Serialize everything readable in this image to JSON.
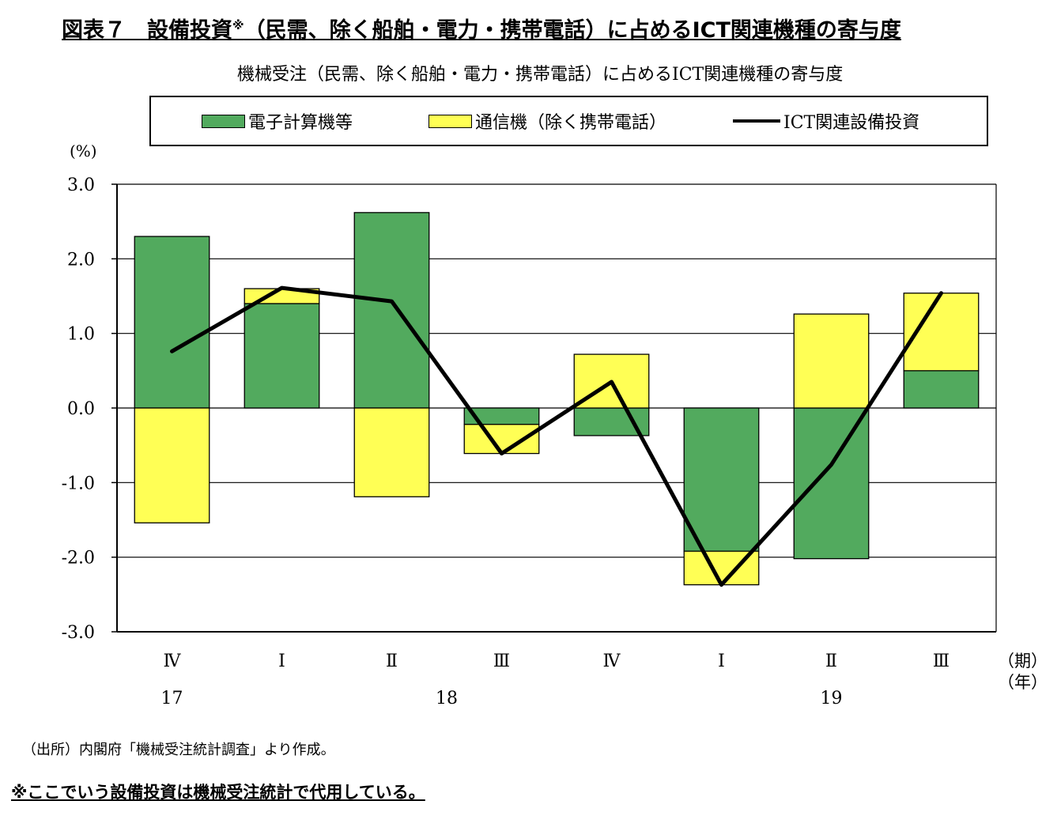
{
  "header": {
    "title": "図表７　設備投資",
    "title_mark": "※",
    "title_rest": "（民需、除く船舶・電力・携帯電話）に占めるICT関連機種の寄与度"
  },
  "unit_label": "(%)",
  "source": "（出所）内閣府「機械受注統計調査」より作成。",
  "footnote": "※ここでいう設備投資は機械受注統計で代用している。",
  "colors": {
    "computer": "#52aa5e",
    "telecom": "#ffff55",
    "line": "#000000",
    "grid": "#000000"
  },
  "chart_data": {
    "type": "bar",
    "stacked": true,
    "title": "機械受注（民需、除く船舶・電力・携帯電話）に占めるICT関連機種の寄与度",
    "ylim": [
      -3.0,
      3.0
    ],
    "yticks": [
      "3.0",
      "2.0",
      "1.0",
      "0.0",
      "-1.0",
      "-2.0",
      "-3.0"
    ],
    "ytick_values": [
      3,
      2,
      1,
      0,
      -1,
      -2,
      -3
    ],
    "grid": true,
    "legend_position": "top",
    "categories": [
      "Ⅳ",
      "Ⅰ",
      "Ⅱ",
      "Ⅲ",
      "Ⅳ",
      "Ⅰ",
      "Ⅱ",
      "Ⅲ"
    ],
    "years": [
      {
        "label": "17",
        "category_index": 0
      },
      {
        "label": "18",
        "category_index": 2.5
      },
      {
        "label": "19",
        "category_index": 6
      }
    ],
    "x_suffix_period": "（期）",
    "x_suffix_year": "（年）",
    "series": [
      {
        "name": "電子計算機等",
        "type": "bar",
        "values": [
          2.3,
          1.4,
          2.62,
          -0.22,
          -0.37,
          -1.92,
          -2.02,
          0.5
        ]
      },
      {
        "name": "通信機（除く携帯電話）",
        "type": "bar",
        "values": [
          -1.54,
          0.2,
          -1.19,
          -0.39,
          0.72,
          -0.45,
          1.26,
          1.04
        ]
      },
      {
        "name": "ICT関連設備投資",
        "type": "line",
        "values": [
          0.76,
          1.61,
          1.43,
          -0.61,
          0.35,
          -2.37,
          -0.76,
          1.54
        ]
      }
    ]
  }
}
